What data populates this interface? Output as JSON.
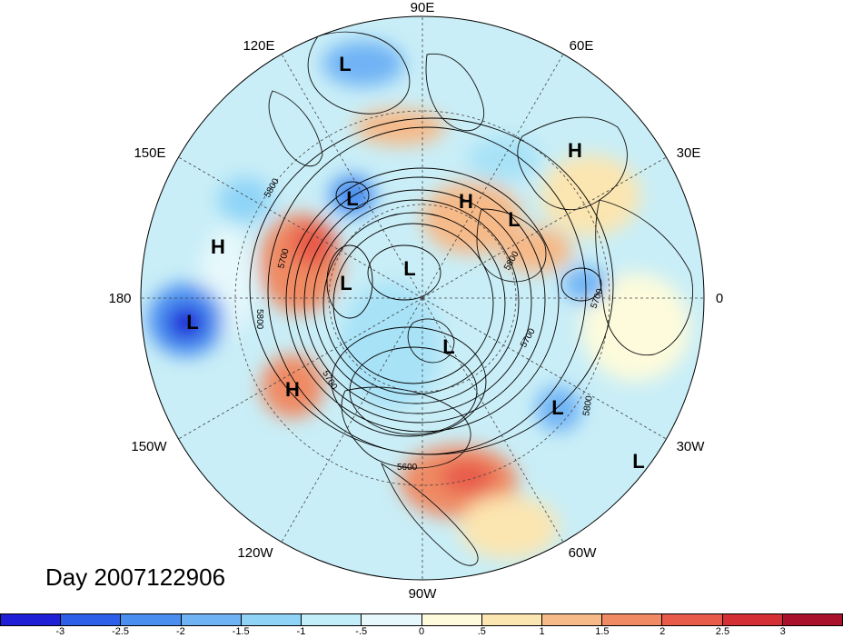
{
  "map": {
    "projection": "north-polar-stereographic",
    "variable": "500 hPa height anomaly (shaded) with height contours",
    "longitude_labels": [
      {
        "id": "lon-90e",
        "text": "90E"
      },
      {
        "id": "lon-60e",
        "text": "60E"
      },
      {
        "id": "lon-30e",
        "text": "30E"
      },
      {
        "id": "lon-0",
        "text": "0"
      },
      {
        "id": "lon-30w",
        "text": "30W"
      },
      {
        "id": "lon-60w",
        "text": "60W"
      },
      {
        "id": "lon-90w",
        "text": "90W"
      },
      {
        "id": "lon-120w",
        "text": "120W"
      },
      {
        "id": "lon-150w",
        "text": "150W"
      },
      {
        "id": "lon-180",
        "text": "180"
      },
      {
        "id": "lon-150e",
        "text": "150E"
      },
      {
        "id": "lon-120e",
        "text": "120E"
      }
    ],
    "pressure_markers": [
      {
        "type": "L"
      },
      {
        "type": "H"
      },
      {
        "type": "L"
      },
      {
        "type": "H"
      },
      {
        "type": "L"
      },
      {
        "type": "H"
      },
      {
        "type": "L"
      },
      {
        "type": "L"
      },
      {
        "type": "L"
      },
      {
        "type": "L"
      },
      {
        "type": "H"
      },
      {
        "type": "L"
      },
      {
        "type": "L"
      },
      {
        "type": "L"
      },
      {
        "type": "H"
      }
    ],
    "contour_labels": [
      "5800",
      "5700",
      "5800",
      "5700",
      "5800",
      "5700",
      "5700",
      "5800",
      "5800",
      "5600"
    ]
  },
  "day_label": "Day 2007122906",
  "colorbar": {
    "colors": [
      "#1f1fd6",
      "#2e5fe8",
      "#4a8ef0",
      "#6fb3f5",
      "#8fd4f7",
      "#c2eef9",
      "#e6f8fb",
      "#fdfbdc",
      "#fbe5b0",
      "#f6b988",
      "#ef8a64",
      "#e85a4a",
      "#d32f34",
      "#a8102c"
    ],
    "ticks": [
      "-3",
      "-2.5",
      "-2",
      "-1.5",
      "-1",
      "-.5",
      "0",
      ".5",
      "1",
      "1.5",
      "2",
      "2.5",
      "3"
    ]
  }
}
